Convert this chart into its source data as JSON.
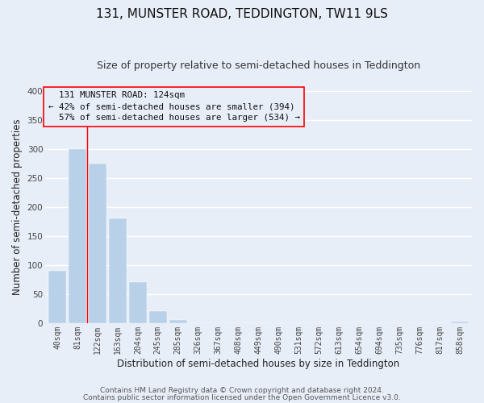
{
  "title": "131, MUNSTER ROAD, TEDDINGTON, TW11 9LS",
  "subtitle": "Size of property relative to semi-detached houses in Teddington",
  "xlabel": "Distribution of semi-detached houses by size in Teddington",
  "ylabel": "Number of semi-detached properties",
  "bin_labels": [
    "40sqm",
    "81sqm",
    "122sqm",
    "163sqm",
    "204sqm",
    "245sqm",
    "285sqm",
    "326sqm",
    "367sqm",
    "408sqm",
    "449sqm",
    "490sqm",
    "531sqm",
    "572sqm",
    "613sqm",
    "654sqm",
    "694sqm",
    "735sqm",
    "776sqm",
    "817sqm",
    "858sqm"
  ],
  "bar_values": [
    90,
    300,
    275,
    180,
    70,
    21,
    5,
    0,
    0,
    0,
    0,
    0,
    0,
    0,
    0,
    0,
    0,
    0,
    0,
    0,
    3
  ],
  "bar_color": "#b8d0e8",
  "highlight_label": "131 MUNSTER ROAD: 124sqm",
  "pct_smaller": "42%",
  "pct_larger": "57%",
  "count_smaller": 394,
  "count_larger": 534,
  "ylim": [
    0,
    400
  ],
  "yticks": [
    0,
    50,
    100,
    150,
    200,
    250,
    300,
    350,
    400
  ],
  "footer1": "Contains HM Land Registry data © Crown copyright and database right 2024.",
  "footer2": "Contains public sector information licensed under the Open Government Licence v3.0.",
  "background_color": "#e8eef8",
  "grid_color": "#ffffff",
  "title_fontsize": 11,
  "subtitle_fontsize": 9,
  "axis_label_fontsize": 8.5,
  "tick_fontsize": 7,
  "footer_fontsize": 6.5
}
